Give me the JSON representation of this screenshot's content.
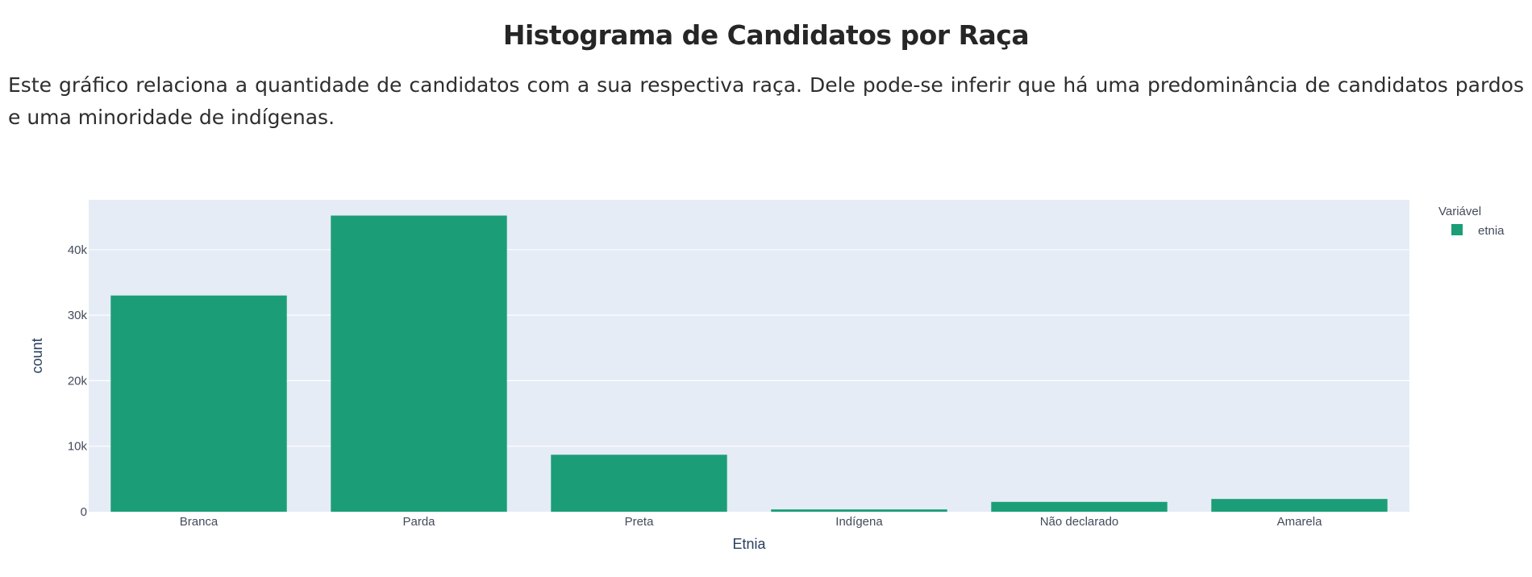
{
  "page": {
    "title": "Histograma de Candidatos por Raça",
    "description": "Este gráfico relaciona a quantidade de candidatos com a sua respectiva raça. Dele pode-se inferir que há uma predominância de candidatos pardos e uma minoridade de indígenas."
  },
  "chart_data": {
    "type": "bar",
    "categories": [
      "Branca",
      "Parda",
      "Preta",
      "Indígena",
      "Não declarado",
      "Amarela"
    ],
    "series": [
      {
        "name": "etnia",
        "color": "#1b9e77",
        "values": [
          33000,
          45200,
          8700,
          350,
          1500,
          1950
        ]
      }
    ],
    "xlabel": "Etnia",
    "ylabel": "count",
    "ylim": [
      0,
      47600
    ],
    "yticks": [
      0,
      10000,
      20000,
      30000,
      40000
    ],
    "ytick_labels": [
      "0",
      "10k",
      "20k",
      "30k",
      "40k"
    ],
    "legend": {
      "title": "Variável",
      "position": "top-right"
    },
    "grid": true,
    "plot_background": "#e5ecf6"
  }
}
